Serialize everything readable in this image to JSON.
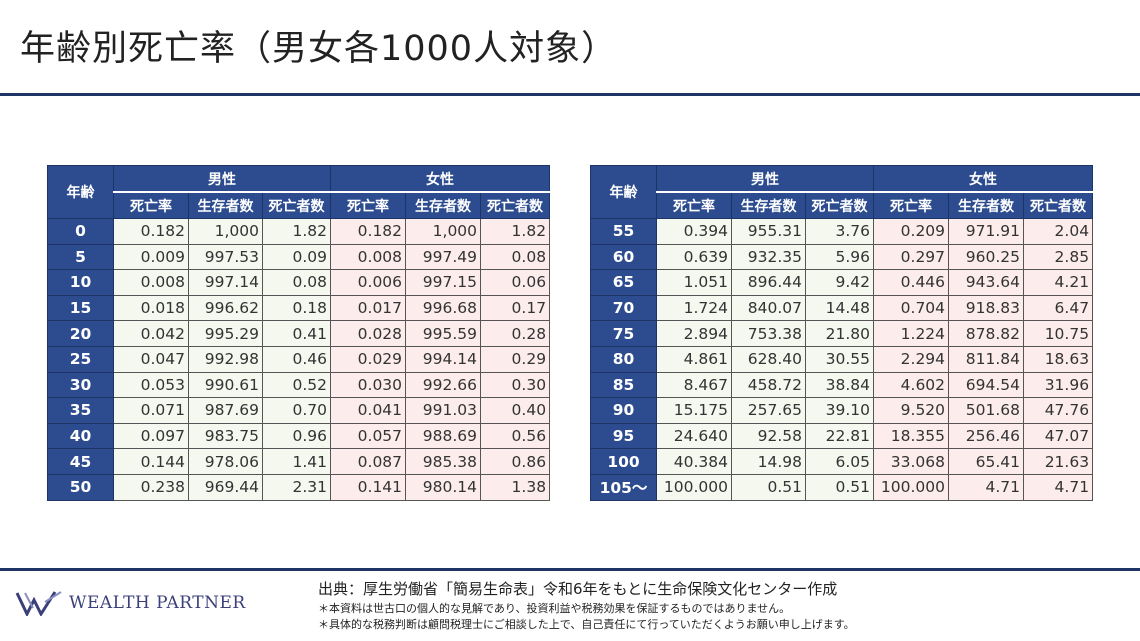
{
  "title": "年齢別死亡率（男女各1000人対象）",
  "table_headers": {
    "age": "年齢",
    "male": "男性",
    "female": "女性",
    "columns": [
      "死亡率",
      "生存者数",
      "死亡者数",
      "死亡率",
      "生存者数",
      "死亡者数"
    ]
  },
  "tables": [
    {
      "rows": [
        [
          "0",
          "0.182",
          "1,000",
          "1.82",
          "0.182",
          "1,000",
          "1.82"
        ],
        [
          "5",
          "0.009",
          "997.53",
          "0.09",
          "0.008",
          "997.49",
          "0.08"
        ],
        [
          "10",
          "0.008",
          "997.14",
          "0.08",
          "0.006",
          "997.15",
          "0.06"
        ],
        [
          "15",
          "0.018",
          "996.62",
          "0.18",
          "0.017",
          "996.68",
          "0.17"
        ],
        [
          "20",
          "0.042",
          "995.29",
          "0.41",
          "0.028",
          "995.59",
          "0.28"
        ],
        [
          "25",
          "0.047",
          "992.98",
          "0.46",
          "0.029",
          "994.14",
          "0.29"
        ],
        [
          "30",
          "0.053",
          "990.61",
          "0.52",
          "0.030",
          "992.66",
          "0.30"
        ],
        [
          "35",
          "0.071",
          "987.69",
          "0.70",
          "0.041",
          "991.03",
          "0.40"
        ],
        [
          "40",
          "0.097",
          "983.75",
          "0.96",
          "0.057",
          "988.69",
          "0.56"
        ],
        [
          "45",
          "0.144",
          "978.06",
          "1.41",
          "0.087",
          "985.38",
          "0.86"
        ],
        [
          "50",
          "0.238",
          "969.44",
          "2.31",
          "0.141",
          "980.14",
          "1.38"
        ]
      ]
    },
    {
      "rows": [
        [
          "55",
          "0.394",
          "955.31",
          "3.76",
          "0.209",
          "971.91",
          "2.04"
        ],
        [
          "60",
          "0.639",
          "932.35",
          "5.96",
          "0.297",
          "960.25",
          "2.85"
        ],
        [
          "65",
          "1.051",
          "896.44",
          "9.42",
          "0.446",
          "943.64",
          "4.21"
        ],
        [
          "70",
          "1.724",
          "840.07",
          "14.48",
          "0.704",
          "918.83",
          "6.47"
        ],
        [
          "75",
          "2.894",
          "753.38",
          "21.80",
          "1.224",
          "878.82",
          "10.75"
        ],
        [
          "80",
          "4.861",
          "628.40",
          "30.55",
          "2.294",
          "811.84",
          "18.63"
        ],
        [
          "85",
          "8.467",
          "458.72",
          "38.84",
          "4.602",
          "694.54",
          "31.96"
        ],
        [
          "90",
          "15.175",
          "257.65",
          "39.10",
          "9.520",
          "501.68",
          "47.76"
        ],
        [
          "95",
          "24.640",
          "92.58",
          "22.81",
          "18.355",
          "256.46",
          "47.07"
        ],
        [
          "100",
          "40.384",
          "14.98",
          "6.05",
          "33.068",
          "65.41",
          "21.63"
        ],
        [
          "105～",
          "100.000",
          "0.51",
          "0.51",
          "100.000",
          "4.71",
          "4.71"
        ]
      ]
    }
  ],
  "footer": {
    "logo_text": "WEALTH PARTNER",
    "source": "出典：厚生労働省「簡易生命表」令和6年をもとに生命保険文化センター作成",
    "notes": [
      "＊本資料は世古口の個人的な見解であり、投資利益や税務効果を保証するものではありません。",
      "＊具体的な税務判断は顧問税理士にご相談した上で、自己責任にて行っていただくようお願い申し上げます。"
    ]
  },
  "colors": {
    "header": "#2c4c8f",
    "male_bg": "#f4f8ef",
    "female_bg": "#fdecec",
    "rule": "#1f3566"
  }
}
